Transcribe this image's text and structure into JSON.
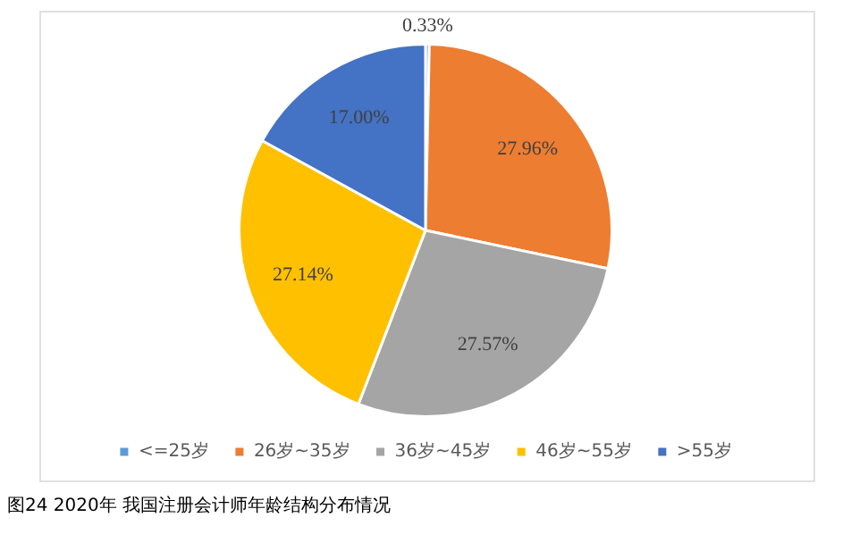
{
  "chart_data": {
    "type": "pie",
    "categories": [
      "<=25岁",
      "26岁~35岁",
      "36岁~45岁",
      "46岁~55岁",
      ">55岁"
    ],
    "values": [
      0.33,
      27.96,
      27.57,
      27.14,
      17.0
    ],
    "value_labels": [
      "0.33%",
      "27.96%",
      "27.57%",
      "27.14%",
      "17.00%"
    ],
    "colors": [
      "#5b9bd5",
      "#ed7d31",
      "#a5a5a5",
      "#ffc000",
      "#4472c4"
    ],
    "legend": "bottom",
    "annotations": [
      "图24  2020年 我国注册会计师年龄结构分布情况"
    ]
  }
}
